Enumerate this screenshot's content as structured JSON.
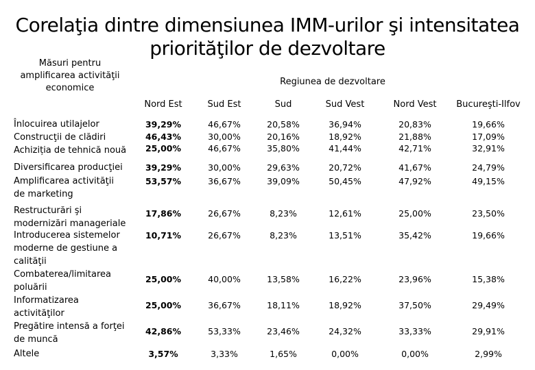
{
  "title": {
    "line1": "Corelaţia dintre dimensiunea IMM-urilor şi intensitatea",
    "line2": "priorităţilor de dezvoltare"
  },
  "header": {
    "measures": "Măsuri pentru amplificarea activităţii economice",
    "region": "Regiunea de dezvoltare",
    "columns": [
      "Nord Est",
      "Sud Est",
      "Sud",
      "Sud Vest",
      "Nord Vest",
      "Bucureşti-Ilfov"
    ]
  },
  "rows": [
    {
      "label": "Înlocuirea utilajelor\nConstrucţii de clădiri\nAchiziția de tehnică nouă",
      "values": [
        "39,29%\n46,43%\n25,00%",
        "46,67%\n30,00%\n46,67%",
        "20,58%\n20,16%\n35,80%",
        "36,94%\n18,92%\n41,44%",
        "20,83%\n21,88%\n42,71%",
        "19,66%\n17,09%\n32,91%"
      ]
    },
    {
      "label": "Diversificarea producţiei",
      "values": [
        "39,29%",
        "30,00%",
        "29,63%",
        "20,72%",
        "41,67%",
        "24,79%"
      ]
    },
    {
      "label": "Amplificarea activităţii\nde marketing",
      "values": [
        "53,57%",
        "36,67%",
        "39,09%",
        "50,45%",
        "47,92%",
        "49,15%"
      ]
    },
    {
      "label": "Restructurări şi\nmodernizări manageriale",
      "values": [
        "17,86%",
        "26,67%",
        "8,23%",
        "12,61%",
        "25,00%",
        "23,50%"
      ]
    },
    {
      "label": "Introducerea sistemelor\nmoderne de gestiune a\ncalităţii",
      "values": [
        "10,71%",
        "26,67%",
        "8,23%",
        "13,51%",
        "35,42%",
        "19,66%"
      ]
    },
    {
      "label": "Combaterea/limitarea\npoluării",
      "values": [
        "25,00%",
        "40,00%",
        "13,58%",
        "16,22%",
        "23,96%",
        "15,38%"
      ]
    },
    {
      "label": "Informatizarea\nactivităţilor",
      "values": [
        "25,00%",
        "36,67%",
        "18,11%",
        "18,92%",
        "37,50%",
        "29,49%"
      ]
    },
    {
      "label": "Pregătire intensă a forţei\nde muncă",
      "values": [
        "42,86%",
        "53,33%",
        "23,46%",
        "24,32%",
        "33,33%",
        "29,91%"
      ]
    },
    {
      "label": "Altele",
      "values": [
        "3,57%",
        "3,33%",
        "1,65%",
        "0,00%",
        "0,00%",
        "2,99%"
      ]
    }
  ]
}
